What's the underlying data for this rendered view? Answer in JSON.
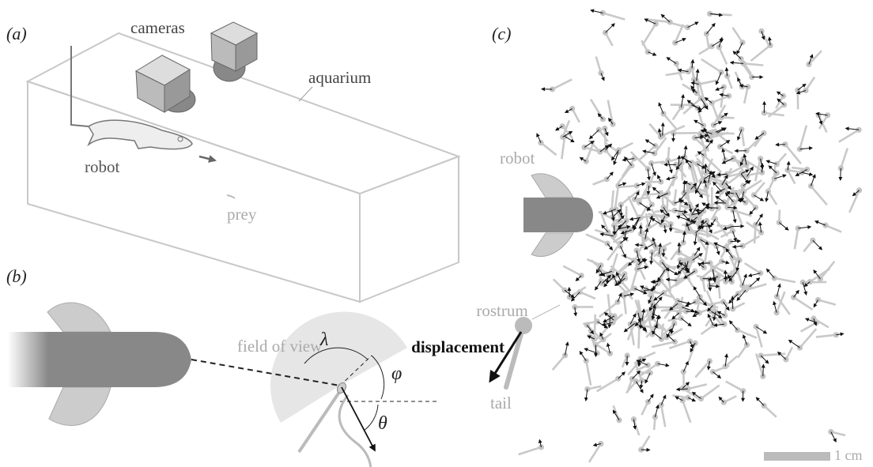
{
  "panel_a": {
    "label": "(a)",
    "cameras": "cameras",
    "aquarium": "aquarium",
    "robot": "robot",
    "prey": "prey"
  },
  "panel_b": {
    "label": "(b)",
    "field_of_view": "field of view",
    "lambda": "λ",
    "phi": "φ",
    "theta": "θ"
  },
  "panel_c": {
    "label": "(c)",
    "robot": "robot",
    "rostrum": "rostrum",
    "displacement": "displacement",
    "tail": "tail",
    "scale_bar": "1 cm"
  }
}
